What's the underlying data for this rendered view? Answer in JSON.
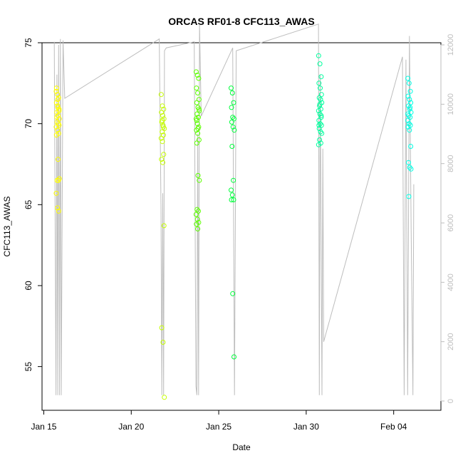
{
  "chart_data": {
    "type": "scatter",
    "title": "ORCAS RF01-8 CFC113_AWAS",
    "xlabel": "Date",
    "ylabel": "CFC113_AWAS",
    "x_ticks": [
      "Jan 15",
      "Jan 20",
      "Jan 25",
      "Jan 30",
      "Feb 04"
    ],
    "x_tick_days": [
      15,
      20,
      25,
      30,
      35
    ],
    "xlim": [
      14.9,
      37.7
    ],
    "ylim": [
      52.3,
      75.0
    ],
    "y_ticks": [
      55,
      60,
      65,
      70,
      75
    ],
    "y2lim": [
      0,
      12000
    ],
    "y2_ticks": [
      0,
      2000,
      4000,
      6000,
      8000,
      10000,
      12000
    ],
    "y2_axis_color": "#bdbdbd",
    "legend": "none",
    "grid": false,
    "flights": [
      {
        "color": "#ffff00",
        "x_center": 15.8,
        "values": [
          72.0,
          71.8,
          71.6,
          71.3,
          71.0,
          70.9,
          70.7,
          70.5,
          70.3,
          70.1,
          70.0,
          69.8,
          69.6,
          69.4,
          69.3,
          71.5,
          70.8,
          70.4,
          67.8,
          66.6,
          66.5,
          66.5,
          65.7,
          64.8,
          64.6,
          72.2,
          71.1,
          69.9
        ]
      },
      {
        "color": "#c6ff00",
        "x_center": 21.8,
        "values": [
          71.8,
          71.1,
          70.9,
          70.7,
          70.5,
          70.3,
          70.1,
          69.9,
          69.7,
          69.5,
          69.3,
          69.1,
          68.9,
          68.1,
          67.8,
          67.6,
          63.7,
          57.4,
          56.5,
          53.1,
          70.2,
          69.8
        ]
      },
      {
        "color": "#5cff00",
        "x_center": 23.8,
        "values": [
          73.2,
          73.0,
          72.8,
          72.2,
          71.9,
          71.5,
          71.3,
          71.0,
          70.8,
          70.6,
          70.4,
          70.3,
          70.0,
          69.8,
          69.6,
          69.4,
          69.0,
          68.8,
          66.8,
          66.5,
          64.7,
          64.6,
          64.4,
          64.1,
          63.9,
          63.8,
          63.5,
          70.9,
          70.2,
          69.7
        ]
      },
      {
        "color": "#00ff3c",
        "x_center": 25.8,
        "values": [
          72.2,
          71.9,
          71.3,
          71.0,
          70.4,
          70.3,
          70.1,
          69.8,
          69.6,
          68.6,
          66.5,
          65.9,
          65.6,
          65.3,
          65.3,
          59.5,
          55.6
        ]
      },
      {
        "color": "#00ff9e",
        "x_center": 30.8,
        "values": [
          74.2,
          73.7,
          72.9,
          72.5,
          72.2,
          71.8,
          71.6,
          71.5,
          71.3,
          71.1,
          70.9,
          70.8,
          70.6,
          70.4,
          70.2,
          70.0,
          69.9,
          69.7,
          69.5,
          69.4,
          69.0,
          68.8,
          68.7,
          71.2,
          70.5,
          69.9
        ]
      },
      {
        "color": "#00ffe5",
        "x_center": 35.9,
        "values": [
          72.8,
          72.5,
          72.0,
          71.7,
          71.5,
          71.3,
          71.1,
          70.9,
          70.7,
          70.5,
          70.4,
          70.2,
          70.0,
          69.9,
          69.8,
          69.6,
          68.6,
          67.6,
          67.3,
          67.2,
          65.5,
          71.0,
          70.6
        ]
      }
    ],
    "altitude_line": {
      "color": "#bdbdbd",
      "points": [
        [
          15.6,
          12100
        ],
        [
          15.7,
          200
        ],
        [
          15.75,
          11000
        ],
        [
          15.8,
          200
        ],
        [
          15.85,
          12000
        ],
        [
          15.9,
          200
        ],
        [
          15.95,
          12200
        ],
        [
          16.0,
          200
        ],
        [
          16.1,
          12150
        ],
        [
          16.2,
          10200
        ],
        [
          21.6,
          12200
        ],
        [
          21.7,
          6600
        ],
        [
          21.75,
          200
        ],
        [
          21.8,
          7000
        ],
        [
          21.85,
          200
        ],
        [
          21.9,
          11800
        ],
        [
          22.0,
          11900
        ],
        [
          23.6,
          12100
        ],
        [
          23.7,
          500
        ],
        [
          23.75,
          200
        ],
        [
          23.8,
          9000
        ],
        [
          23.85,
          200
        ],
        [
          23.9,
          12700
        ],
        [
          24.0,
          9600
        ],
        [
          25.8,
          11900
        ],
        [
          25.9,
          200
        ],
        [
          26.0,
          11800
        ],
        [
          30.7,
          12700
        ],
        [
          30.75,
          200
        ],
        [
          30.8,
          11000
        ],
        [
          30.9,
          200
        ],
        [
          30.95,
          8500
        ],
        [
          31.0,
          2000
        ],
        [
          35.5,
          11600
        ],
        [
          35.6,
          200
        ],
        [
          35.7,
          11500
        ],
        [
          35.8,
          200
        ],
        [
          35.9,
          12300
        ],
        [
          36.0,
          5800
        ],
        [
          36.1,
          200
        ],
        [
          36.15,
          7300
        ]
      ]
    }
  }
}
